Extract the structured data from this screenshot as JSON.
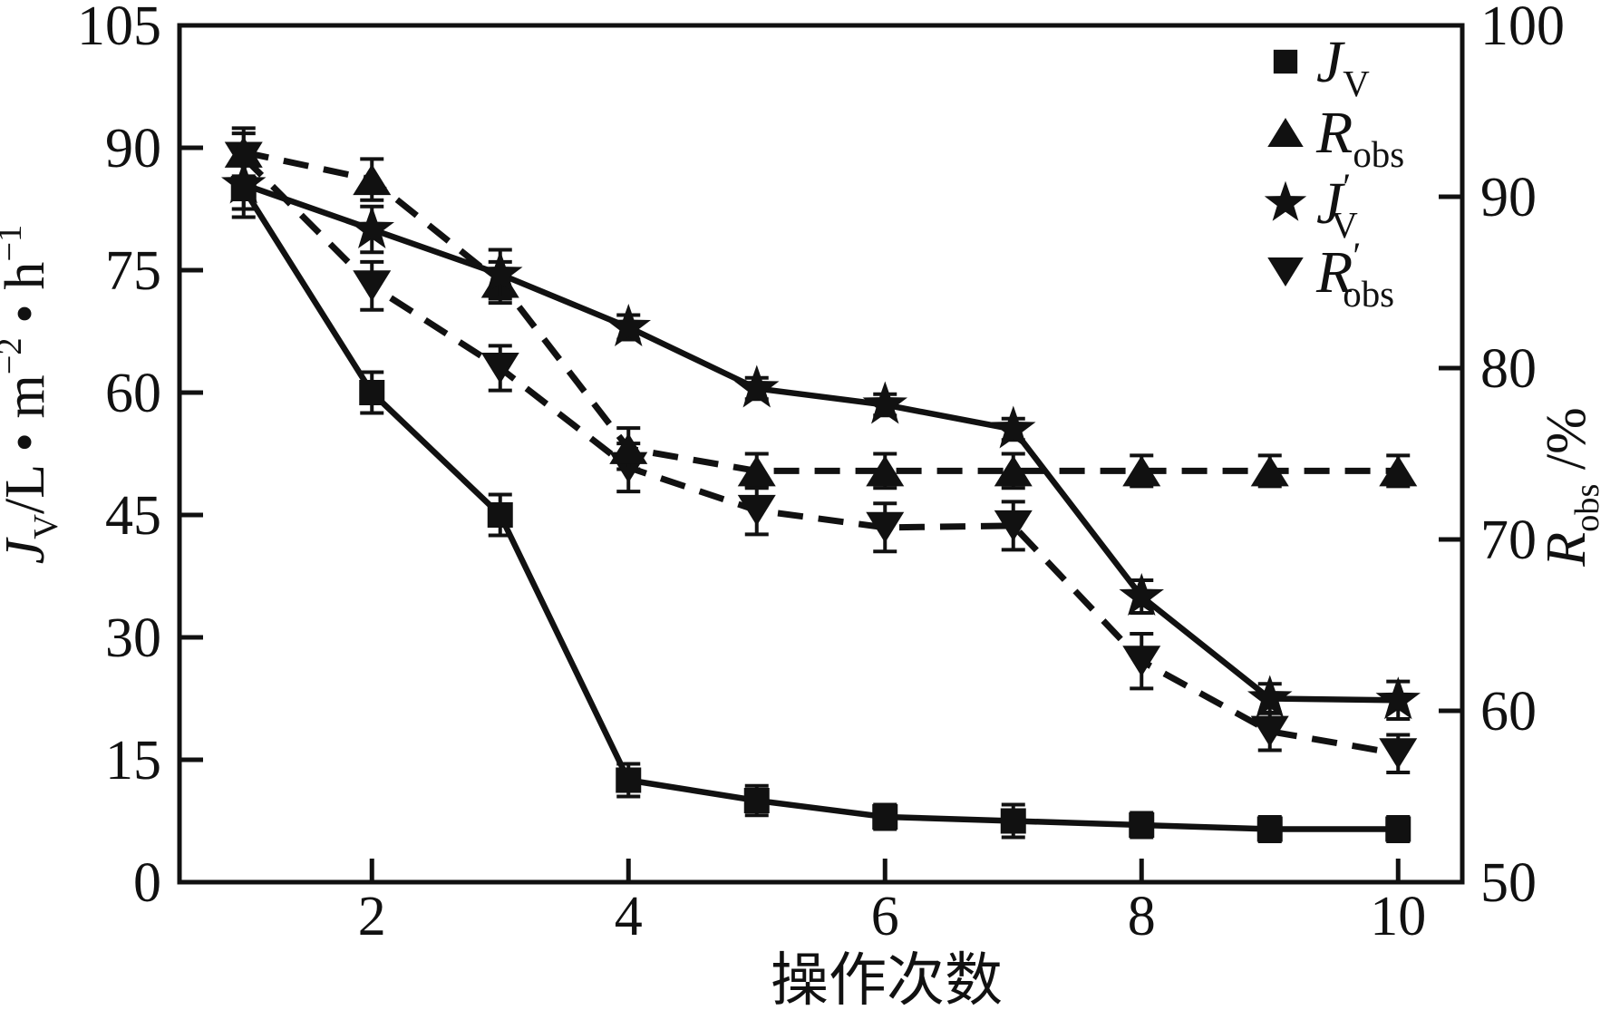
{
  "figure": {
    "background": "#ffffff",
    "ink": "#111111"
  },
  "chart_data": {
    "type": "line",
    "title": "",
    "xlabel": "操作次数",
    "xlim": [
      0.5,
      10.5
    ],
    "x_ticks": [
      2,
      4,
      6,
      8,
      10
    ],
    "x": [
      1,
      2,
      3,
      4,
      5,
      6,
      7,
      8,
      9,
      10
    ],
    "grid": false,
    "legend_position": "top-right-inside",
    "left_axis": {
      "label_rich": [
        {
          "text": "J",
          "style": "italic"
        },
        {
          "text": "V",
          "style": "sub"
        },
        {
          "text": "/L • m"
        },
        {
          "text": "−2",
          "style": "sup"
        },
        {
          "text": " • h"
        },
        {
          "text": "−1",
          "style": "sup"
        }
      ],
      "lim": [
        0,
        105
      ],
      "ticks": [
        0,
        15,
        30,
        45,
        60,
        75,
        90,
        105
      ]
    },
    "right_axis": {
      "label_rich": [
        {
          "text": "R",
          "style": "italic"
        },
        {
          "text": "obs",
          "style": "sub"
        },
        {
          "text": " /%"
        }
      ],
      "lim": [
        50,
        100
      ],
      "ticks": [
        50,
        60,
        70,
        80,
        90,
        100
      ]
    },
    "series": [
      {
        "id": "jv",
        "legend_rich": [
          {
            "text": "J",
            "style": "italic"
          },
          {
            "text": "V",
            "style": "sub"
          }
        ],
        "marker": "square",
        "line": "solid",
        "axis": "left",
        "values": [
          85,
          60,
          45,
          12.5,
          10,
          8,
          7.5,
          7,
          6.5,
          6.5
        ],
        "errors": [
          3.5,
          2.5,
          2.5,
          2,
          1.8,
          1.5,
          2,
          1.5,
          1.5,
          1.5
        ]
      },
      {
        "id": "robs",
        "legend_rich": [
          {
            "text": "R",
            "style": "italic"
          },
          {
            "text": "obs",
            "style": "sub"
          }
        ],
        "marker": "triangle-up",
        "line": "dashed",
        "axis": "right",
        "values": [
          92.6,
          91,
          85,
          75.3,
          74,
          74,
          74,
          74,
          74,
          74
        ],
        "errors": [
          1.4,
          1.2,
          1.2,
          1.2,
          1,
          1,
          1,
          0.9,
          0.9,
          0.9
        ]
      },
      {
        "id": "jv_prime",
        "legend_rich": [
          {
            "text": "J",
            "style": "italic"
          },
          {
            "text": "′",
            "style": "sup"
          },
          {
            "text": "V",
            "style": "sub",
            "dx": -22
          }
        ],
        "marker": "star",
        "line": "solid",
        "axis": "left",
        "values": [
          85.5,
          80,
          74.5,
          68,
          60.5,
          58.5,
          55.5,
          35,
          22.5,
          22.3
        ],
        "errors": [
          3,
          2.8,
          3,
          1.5,
          1.3,
          1.3,
          1.3,
          2,
          1.8,
          2.3
        ]
      },
      {
        "id": "robs_prime",
        "legend_rich": [
          {
            "text": "R",
            "style": "italic"
          },
          {
            "text": "′",
            "style": "sup"
          },
          {
            "text": "obs",
            "style": "sub",
            "dx": -20
          }
        ],
        "marker": "triangle-down",
        "line": "dashed",
        "axis": "right",
        "values": [
          92.3,
          84.8,
          80,
          74.2,
          71.7,
          70.7,
          70.8,
          62.9,
          58.8,
          57.5
        ],
        "errors": [
          1.4,
          1.4,
          1.3,
          1.4,
          1.4,
          1.4,
          1.4,
          1.6,
          1.1,
          1.1
        ]
      }
    ]
  }
}
